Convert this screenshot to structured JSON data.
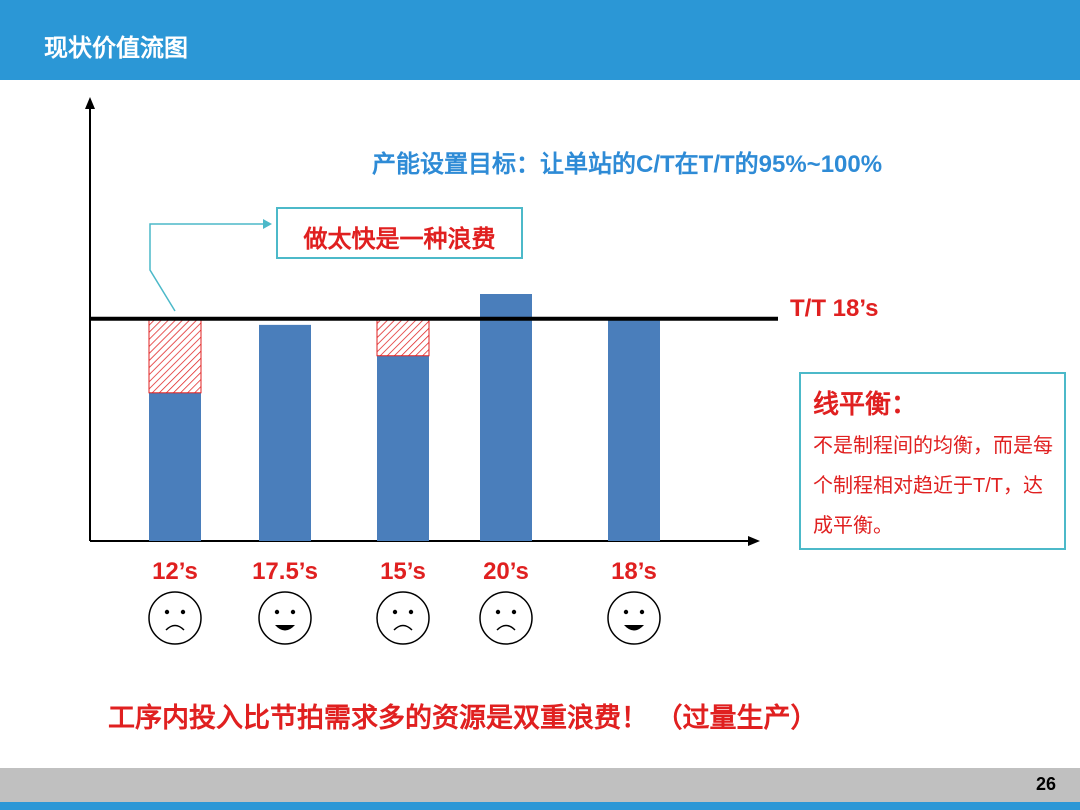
{
  "header": {
    "title": "现状价值流图"
  },
  "colors": {
    "header_bg": "#2b97d6",
    "bar": "#4a7ebb",
    "red": "#e02020",
    "teal": "#4cb9c9",
    "blue_text": "#2e8bd6"
  },
  "annotations": {
    "target": "产能设置目标：让单站的C/T在T/T的95%~100%",
    "waste": "做太快是一种浪费",
    "tt_label": "T/T  18’s",
    "balance_title": "线平衡：",
    "balance_body": "不是制程间的均衡，而是每个制程相对趋近于T/T，达成平衡。",
    "bottom": "工序内投入比节拍需求多的资源是双重浪费！ （过量生产）"
  },
  "faces": [
    "sad",
    "happy",
    "sad",
    "sad",
    "happy"
  ],
  "chart_data": {
    "type": "bar",
    "categories": [
      "12’s",
      "17.5’s",
      "15’s",
      "20’s",
      "18’s"
    ],
    "values": [
      12,
      17.5,
      15,
      20,
      18
    ],
    "reference_line": {
      "label": "T/T 18’s",
      "value": 18
    },
    "waste_fill_to": 18,
    "waste_bars": [
      0,
      2
    ],
    "title": "",
    "xlabel": "",
    "ylabel": ""
  },
  "footer": {
    "page_number": "26"
  }
}
